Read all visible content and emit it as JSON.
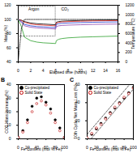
{
  "chart_data": [
    {
      "type": "line",
      "x_label": "Elapsed time (hours)",
      "y_label": "Mass (%)",
      "y2_label": "Temperature (°C)",
      "x": [
        0,
        0.5,
        1,
        2,
        3,
        4,
        5,
        6,
        6.1,
        6.5,
        7,
        8,
        10,
        12,
        14,
        16
      ],
      "xlim": [
        0,
        16
      ],
      "xticks": [
        0,
        2,
        4,
        6,
        8,
        10,
        12,
        14,
        16
      ],
      "ylim": [
        40,
        120
      ],
      "yticks": [
        40,
        60,
        80,
        100,
        120
      ],
      "y2lim": [
        0,
        1200
      ],
      "y2ticks": [
        0,
        200,
        400,
        600,
        800,
        1000,
        1200
      ],
      "series": [
        {
          "color": "#000000",
          "line_style": "solid",
          "values": [
            100,
            99,
            97,
            95,
            94,
            93.5,
            93,
            92.5,
            96,
            97,
            97.5,
            98,
            98.5,
            99,
            99.2,
            99.4
          ]
        },
        {
          "color": "#e0201b",
          "line_style": "solid",
          "values": [
            100,
            98.5,
            96,
            93.5,
            92.5,
            92,
            91.5,
            91,
            95,
            96,
            96.5,
            97,
            97.5,
            98,
            98.2,
            98.4
          ]
        },
        {
          "color": "#1f3fcf",
          "line_style": "solid",
          "values": [
            100,
            97,
            93,
            91,
            90,
            89.5,
            89,
            88.5,
            93,
            94,
            94.5,
            95,
            95.5,
            96,
            96.3,
            96.5
          ]
        },
        {
          "color": "#8e44ad",
          "line_style": "solid",
          "values": [
            100,
            96,
            91,
            89,
            88,
            87.5,
            87,
            86.5,
            90,
            91,
            91.5,
            92,
            92.5,
            93,
            93.3,
            93.5
          ]
        },
        {
          "color": "#2ca02c",
          "line_style": "solid",
          "values": [
            100,
            90,
            75,
            70,
            68,
            67,
            66.5,
            66,
            70,
            72,
            73,
            74,
            75,
            75.5,
            76,
            76.5
          ]
        },
        {
          "color": "#000000",
          "line_style": "dotted",
          "axis": "y2",
          "values": [
            25,
            700,
            900,
            900,
            900,
            900,
            900,
            900,
            900,
            900,
            900,
            900,
            900,
            900,
            900,
            900
          ]
        }
      ],
      "box": {
        "x": [
          0,
          6
        ],
        "y": [
          76,
          118
        ]
      },
      "annotations": [
        {
          "text": "Argon",
          "x": 2.5,
          "y": 114
        },
        {
          "text": "CO₂",
          "x": 7.5,
          "y": 114
        }
      ],
      "grid": false
    },
    {
      "type": "scatter",
      "title": "B",
      "x_label": "Fe Content (mol % Fe)",
      "y_label": "CO2 Mass Increase (%)",
      "x": [
        0,
        10,
        20,
        30,
        40,
        50,
        60,
        70,
        80,
        90,
        100
      ],
      "xlim": [
        0,
        100
      ],
      "xticks": [
        0,
        20,
        40,
        60,
        80,
        100
      ],
      "ylim": [
        0,
        40
      ],
      "yticks": [
        0,
        10,
        20,
        30,
        40
      ],
      "series": [
        {
          "name": "Co-precipitated",
          "color": "#000000",
          "marker": "circle",
          "values": [
            1,
            6,
            14,
            24,
            30,
            31,
            27,
            22,
            14,
            8,
            1
          ]
        },
        {
          "name": "Solid State",
          "color": "#c00000",
          "marker": "open-circle",
          "values": [
            1,
            5,
            12,
            20,
            26,
            28,
            25,
            19,
            12,
            6,
            1
          ]
        }
      ],
      "legend": "top-left",
      "grid": false
    },
    {
      "type": "scatter",
      "title": "C",
      "x_label": "Fe Content (mol % Fe)",
      "y_label": "10th Cycle Net Mass Loss (%)",
      "x": [
        0,
        10,
        20,
        30,
        40,
        50,
        60,
        70,
        80,
        90,
        100
      ],
      "xlim": [
        0,
        100
      ],
      "xticks": [
        0,
        20,
        40,
        60,
        80,
        100
      ],
      "ylim": [
        0,
        60
      ],
      "yticks": [
        0,
        20,
        40,
        60
      ],
      "series": [
        {
          "name": "Co-precipitated",
          "color": "#000000",
          "marker": "circle",
          "values": [
            0,
            5,
            11,
            17,
            23,
            29,
            34,
            40,
            45,
            51,
            57
          ]
        },
        {
          "name": "Solid State",
          "color": "#c00000",
          "marker": "open-circle",
          "values": [
            1,
            6,
            12,
            16,
            22,
            28,
            35,
            39,
            46,
            50,
            56
          ]
        }
      ],
      "fit_lines": [
        {
          "color": "#000000",
          "line_style": "dashed",
          "x": [
            0,
            100
          ],
          "values": [
            5,
            65
          ]
        },
        {
          "color": "#000000",
          "line_style": "dashed",
          "x": [
            0,
            100
          ],
          "values": [
            -5,
            55
          ]
        }
      ],
      "legend": "top-left",
      "grid": false
    }
  ]
}
